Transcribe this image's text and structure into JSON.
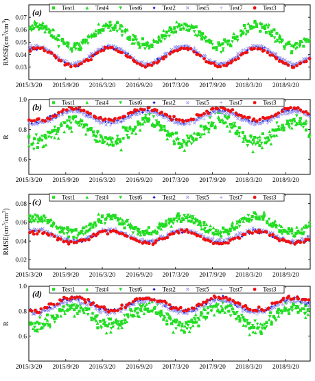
{
  "chart_data": [
    {
      "type": "scatter",
      "panel_label": "(a)",
      "ylabel": "RMSE(cm³/cm³)",
      "ylabel_parts": {
        "main": "RMSE(cm",
        "sup1": "3",
        "mid": "/cm",
        "sup2": "3",
        "end": ")"
      },
      "xlabel": "",
      "x_ticks": [
        "2015/3/20",
        "2015/9/20",
        "2016/3/20",
        "2016/9/20",
        "2017/3/20",
        "2017/9/20",
        "2018/3/20",
        "2018/9/20"
      ],
      "xlim": [
        "2015-03-20",
        "2019-01-20"
      ],
      "ylim": [
        0.02,
        0.08
      ],
      "y_ticks": [
        "0.03",
        "0.04",
        "0.05",
        "0.06",
        "0.07"
      ],
      "y_tick_values": [
        0.03,
        0.04,
        0.05,
        0.06,
        0.07
      ],
      "legend": [
        "Test1",
        "Test4",
        "Test6",
        "Test2",
        "Test5",
        "Test7",
        "Test3"
      ],
      "series_profiles": {
        "Test1": {
          "base": 0.055,
          "amp": 0.008,
          "noise": 0.006
        },
        "Test4": {
          "base": 0.056,
          "amp": 0.008,
          "noise": 0.007
        },
        "Test6": {
          "base": 0.054,
          "amp": 0.008,
          "noise": 0.006
        },
        "Test2": {
          "base": 0.039,
          "amp": 0.007,
          "noise": 0.002
        },
        "Test5": {
          "base": 0.04,
          "amp": 0.007,
          "noise": 0.002
        },
        "Test7": {
          "base": 0.04,
          "amp": 0.007,
          "noise": 0.002
        },
        "Test3": {
          "base": 0.038,
          "amp": 0.007,
          "noise": 0.002
        }
      }
    },
    {
      "type": "scatter",
      "panel_label": "(b)",
      "ylabel": "R",
      "xlabel": "",
      "x_ticks": [
        "2015/3/20",
        "2015/9/20",
        "2016/3/20",
        "2016/9/20",
        "2017/3/20",
        "2017/9/20",
        "2018/3/20",
        "2018/9/20"
      ],
      "xlim": [
        "2015-03-20",
        "2019-01-20"
      ],
      "ylim": [
        0.5,
        1.0
      ],
      "y_ticks": [
        "0.6",
        "0.8",
        "1.0"
      ],
      "y_tick_values": [
        0.6,
        0.8,
        1.0
      ],
      "legend": [
        "Test1",
        "Test4",
        "Test6",
        "Test2",
        "Test5",
        "Test7",
        "Test3"
      ],
      "series_profiles": {
        "Test1": {
          "base": 0.79,
          "amp": -0.07,
          "noise": 0.07
        },
        "Test4": {
          "base": 0.78,
          "amp": -0.07,
          "noise": 0.08
        },
        "Test6": {
          "base": 0.79,
          "amp": -0.07,
          "noise": 0.07
        },
        "Test2": {
          "base": 0.89,
          "amp": -0.04,
          "noise": 0.02
        },
        "Test5": {
          "base": 0.88,
          "amp": -0.04,
          "noise": 0.02
        },
        "Test7": {
          "base": 0.88,
          "amp": -0.04,
          "noise": 0.02
        },
        "Test3": {
          "base": 0.9,
          "amp": -0.04,
          "noise": 0.02
        }
      }
    },
    {
      "type": "scatter",
      "panel_label": "(c)",
      "ylabel": "RMSE(cm³/cm³)",
      "ylabel_parts": {
        "main": "RMSE(cm",
        "sup1": "3",
        "mid": "/cm",
        "sup2": "3",
        "end": ")"
      },
      "xlabel": "",
      "x_ticks": [
        "2015/3/20",
        "2015/9/20",
        "2016/3/20",
        "2016/9/20",
        "2017/3/20",
        "2017/9/20",
        "2018/3/20",
        "2018/9/20"
      ],
      "xlim": [
        "2015-03-20",
        "2019-01-20"
      ],
      "ylim": [
        0.01,
        0.09
      ],
      "y_ticks": [
        "0.02",
        "0.04",
        "0.06",
        "0.08"
      ],
      "y_tick_values": [
        0.02,
        0.04,
        0.06,
        0.08
      ],
      "legend": [
        "Test1",
        "Test4",
        "Test6",
        "Test2",
        "Test5",
        "Test7",
        "Test3"
      ],
      "series_profiles": {
        "Test1": {
          "base": 0.057,
          "amp": 0.008,
          "noise": 0.007
        },
        "Test4": {
          "base": 0.058,
          "amp": 0.008,
          "noise": 0.008
        },
        "Test6": {
          "base": 0.056,
          "amp": 0.008,
          "noise": 0.007
        },
        "Test2": {
          "base": 0.045,
          "amp": 0.006,
          "noise": 0.003
        },
        "Test5": {
          "base": 0.046,
          "amp": 0.006,
          "noise": 0.003
        },
        "Test7": {
          "base": 0.046,
          "amp": 0.006,
          "noise": 0.003
        },
        "Test3": {
          "base": 0.044,
          "amp": 0.006,
          "noise": 0.003
        }
      }
    },
    {
      "type": "scatter",
      "panel_label": "(d)",
      "ylabel": "R",
      "xlabel": "",
      "x_ticks": [
        "2015/3/20",
        "2015/9/20",
        "2016/3/20",
        "2016/9/20",
        "2017/3/20",
        "2017/9/20",
        "2018/3/20",
        "2018/9/20"
      ],
      "xlim": [
        "2015-03-20",
        "2019-01-20"
      ],
      "ylim": [
        0.4,
        1.0
      ],
      "y_ticks": [
        "0.6",
        "0.8",
        "1.0"
      ],
      "y_tick_values": [
        0.6,
        0.8,
        1.0
      ],
      "legend": [
        "Test1",
        "Test4",
        "Test6",
        "Test2",
        "Test5",
        "Test7",
        "Test3"
      ],
      "series_profiles": {
        "Test1": {
          "base": 0.76,
          "amp": -0.08,
          "noise": 0.08
        },
        "Test4": {
          "base": 0.75,
          "amp": -0.08,
          "noise": 0.09
        },
        "Test6": {
          "base": 0.76,
          "amp": -0.08,
          "noise": 0.08
        },
        "Test2": {
          "base": 0.85,
          "amp": -0.05,
          "noise": 0.03
        },
        "Test5": {
          "base": 0.84,
          "amp": -0.05,
          "noise": 0.03
        },
        "Test7": {
          "base": 0.84,
          "amp": -0.05,
          "noise": 0.03
        },
        "Test3": {
          "base": 0.86,
          "amp": -0.05,
          "noise": 0.03
        }
      }
    }
  ],
  "series_styles": {
    "Test1": {
      "color": "#22dd22",
      "marker": "square"
    },
    "Test4": {
      "color": "#22dd22",
      "marker": "triangle-up"
    },
    "Test6": {
      "color": "#22dd22",
      "marker": "triangle-down"
    },
    "Test2": {
      "color": "#1f1fd6",
      "marker": "diamond"
    },
    "Test5": {
      "color": "#8888ee",
      "marker": "x"
    },
    "Test7": {
      "color": "#aaaaf0",
      "marker": "plus"
    },
    "Test3": {
      "color": "#ee1111",
      "marker": "circle"
    }
  }
}
